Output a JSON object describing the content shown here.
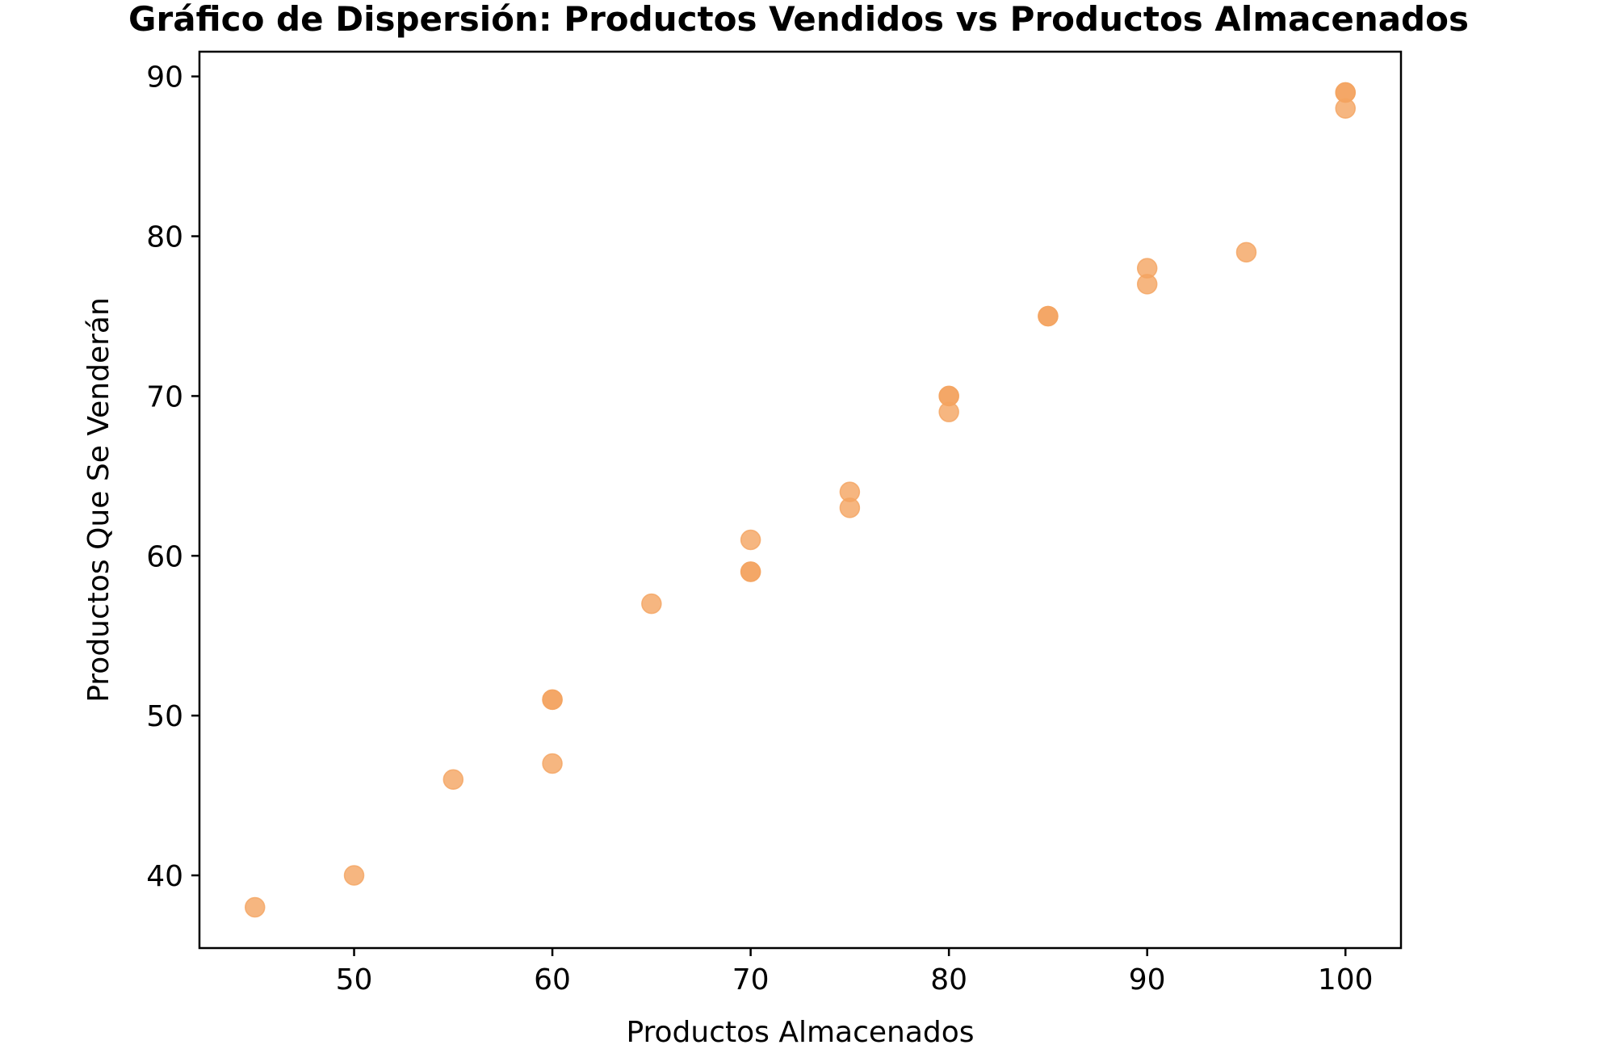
{
  "chart_data": {
    "type": "scatter",
    "title": "Gráfico de Dispersión: Productos Vendidos vs Productos Almacenados",
    "xlabel": "Productos Almacenados",
    "ylabel": "Productos Que Se Venderán",
    "xlim": [
      42.2,
      102.8
    ],
    "ylim": [
      35.45,
      91.55
    ],
    "xticks": [
      50,
      60,
      70,
      80,
      90,
      100
    ],
    "yticks": [
      40,
      50,
      60,
      70,
      80,
      90
    ],
    "grid": false,
    "legend": "none",
    "marker_color": "#f4a460",
    "marker_opacity": 0.8,
    "x": [
      45,
      50,
      55,
      60,
      60,
      60,
      65,
      70,
      70,
      70,
      75,
      75,
      80,
      80,
      80,
      85,
      85,
      90,
      90,
      95,
      100,
      100,
      100
    ],
    "y": [
      38,
      40,
      46,
      47,
      51,
      51,
      57,
      59,
      59,
      61,
      63,
      64,
      69,
      70,
      70,
      75,
      75,
      77,
      78,
      79,
      88,
      89,
      89
    ]
  }
}
